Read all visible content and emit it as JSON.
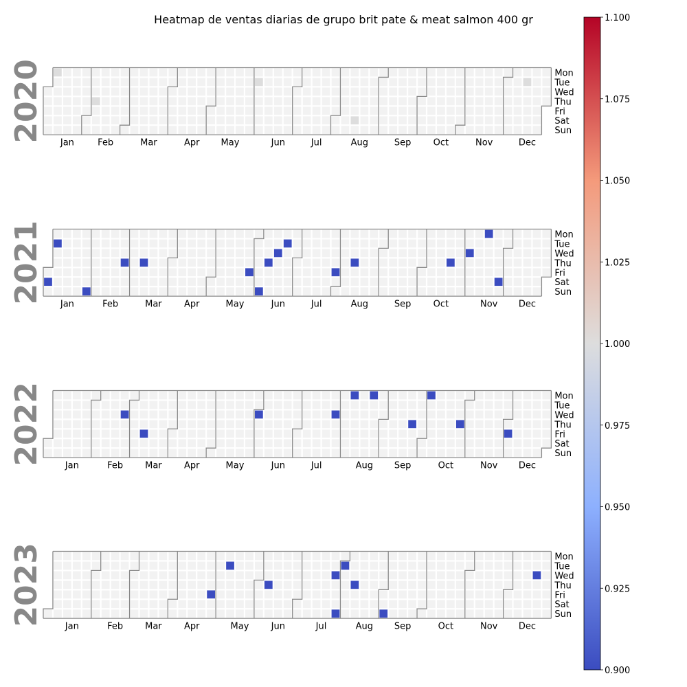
{
  "chart_data": {
    "type": "heatmap",
    "title": "Heatmap de ventas diarias de grupo brit pate & meat salmon 400 gr",
    "weekday_labels": [
      "Mon",
      "Tue",
      "Wed",
      "Thu",
      "Fri",
      "Sat",
      "Sun"
    ],
    "month_labels": [
      "Jan",
      "Feb",
      "Mar",
      "Apr",
      "May",
      "Jun",
      "Jul",
      "Aug",
      "Sep",
      "Oct",
      "Nov",
      "Dec"
    ],
    "years": [
      "2020",
      "2021",
      "2022",
      "2023"
    ],
    "colorbar": {
      "colormap": "coolwarm",
      "vmin": 0.9,
      "vmax": 1.1,
      "ticks": [
        "0.900",
        "0.925",
        "0.950",
        "0.975",
        "1.000",
        "1.025",
        "1.050",
        "1.075",
        "1.100"
      ]
    },
    "values": [
      {
        "date": "2020-01-06",
        "value": 1.0
      },
      {
        "date": "2020-02-06",
        "value": 1.0
      },
      {
        "date": "2020-06-02",
        "value": 1.0
      },
      {
        "date": "2020-08-15",
        "value": 1.0
      },
      {
        "date": "2020-12-15",
        "value": 1.0
      },
      {
        "date": "2021-01-02",
        "value": 0.9
      },
      {
        "date": "2021-01-05",
        "value": 0.9
      },
      {
        "date": "2021-01-31",
        "value": 0.9
      },
      {
        "date": "2021-02-25",
        "value": 0.9
      },
      {
        "date": "2021-03-11",
        "value": 0.9
      },
      {
        "date": "2021-05-28",
        "value": 0.9
      },
      {
        "date": "2021-06-06",
        "value": 0.9
      },
      {
        "date": "2021-06-10",
        "value": 0.9
      },
      {
        "date": "2021-06-16",
        "value": 0.9
      },
      {
        "date": "2021-06-22",
        "value": 0.9
      },
      {
        "date": "2021-07-30",
        "value": 0.9
      },
      {
        "date": "2021-08-12",
        "value": 0.9
      },
      {
        "date": "2021-10-21",
        "value": 0.9
      },
      {
        "date": "2021-11-03",
        "value": 0.9
      },
      {
        "date": "2021-11-15",
        "value": 0.9
      },
      {
        "date": "2021-11-27",
        "value": 0.9
      },
      {
        "date": "2022-02-23",
        "value": 0.9
      },
      {
        "date": "2022-03-11",
        "value": 0.9
      },
      {
        "date": "2022-06-01",
        "value": 0.9
      },
      {
        "date": "2022-07-27",
        "value": 0.9
      },
      {
        "date": "2022-08-08",
        "value": 0.9
      },
      {
        "date": "2022-08-22",
        "value": 0.9
      },
      {
        "date": "2022-09-22",
        "value": 0.9
      },
      {
        "date": "2022-10-03",
        "value": 0.9
      },
      {
        "date": "2022-10-27",
        "value": 0.9
      },
      {
        "date": "2022-12-02",
        "value": 0.9
      },
      {
        "date": "2023-04-28",
        "value": 0.9
      },
      {
        "date": "2023-05-09",
        "value": 0.9
      },
      {
        "date": "2023-06-08",
        "value": 0.9
      },
      {
        "date": "2023-07-26",
        "value": 0.9
      },
      {
        "date": "2023-07-30",
        "value": 0.9
      },
      {
        "date": "2023-08-01",
        "value": 0.9
      },
      {
        "date": "2023-08-10",
        "value": 0.9
      },
      {
        "date": "2023-09-03",
        "value": 0.9
      },
      {
        "date": "2023-12-20",
        "value": 0.9
      }
    ]
  }
}
